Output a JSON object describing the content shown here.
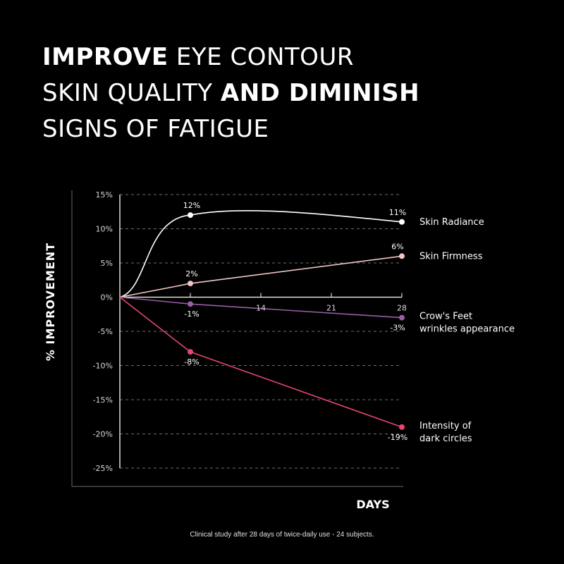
{
  "headline": {
    "line1": [
      {
        "text": "IMPROVE",
        "bold": true
      },
      {
        "text": " EYE CONTOUR",
        "bold": false
      }
    ],
    "line2": [
      {
        "text": "SKIN QUALITY ",
        "bold": false
      },
      {
        "text": "AND DIMINISH",
        "bold": true
      }
    ],
    "line3": [
      {
        "text": "SIGNS OF FATIGUE",
        "bold": false
      }
    ]
  },
  "footnote": "Clinical study after 28 days of twice-daily use - 24 subjects.",
  "chart_data": {
    "type": "line",
    "ylabel": "% IMPROVEMENT",
    "xlabel": "DAYS",
    "ylim": [
      -25,
      15
    ],
    "xlim": [
      0,
      28
    ],
    "y_ticks": [
      15,
      10,
      5,
      0,
      -5,
      -10,
      -15,
      -20,
      -25
    ],
    "y_tick_labels": [
      "15%",
      "10%",
      "5%",
      "0%",
      "-5%",
      "-10%",
      "-15%",
      "-20%",
      "-25%"
    ],
    "x_ticks": [
      7,
      14,
      21,
      28
    ],
    "x_tick_labels": [
      "",
      "14",
      "21",
      "28"
    ],
    "grid": "horizontal-dashed",
    "legend": "right-of-line-ends",
    "series": [
      {
        "name": "Skin Radiance",
        "color": "#ffffff",
        "smooth": true,
        "x": [
          0,
          7,
          28
        ],
        "y": [
          0,
          12,
          11
        ],
        "point_labels": [
          "",
          "12%",
          "11%"
        ],
        "label_pos": [
          "",
          "above",
          "above"
        ],
        "legend_lines": [
          "Skin Radiance"
        ]
      },
      {
        "name": "Skin Firmness",
        "color": "#f2c4c4",
        "smooth": false,
        "x": [
          0,
          7,
          28
        ],
        "y": [
          0,
          2,
          6
        ],
        "point_labels": [
          "",
          "2%",
          "6%"
        ],
        "label_pos": [
          "",
          "above",
          "above"
        ],
        "legend_lines": [
          "Skin Firmness"
        ]
      },
      {
        "name": "Crow's Feet wrinkles appearance",
        "color": "#9a5ca8",
        "smooth": false,
        "x": [
          0,
          7,
          28
        ],
        "y": [
          0,
          -1,
          -3
        ],
        "point_labels": [
          "",
          "-1%",
          "-3%"
        ],
        "label_pos": [
          "",
          "below",
          "below"
        ],
        "legend_lines": [
          "Crow's Feet",
          "wrinkles appearance"
        ]
      },
      {
        "name": "Intensity of dark circles",
        "color": "#e8476e",
        "smooth": false,
        "x": [
          0,
          7,
          28
        ],
        "y": [
          0,
          -8,
          -19
        ],
        "point_labels": [
          "",
          "-8%",
          "-19%"
        ],
        "label_pos": [
          "",
          "below",
          "below"
        ],
        "legend_lines": [
          "Intensity of",
          "dark circles"
        ]
      }
    ]
  }
}
